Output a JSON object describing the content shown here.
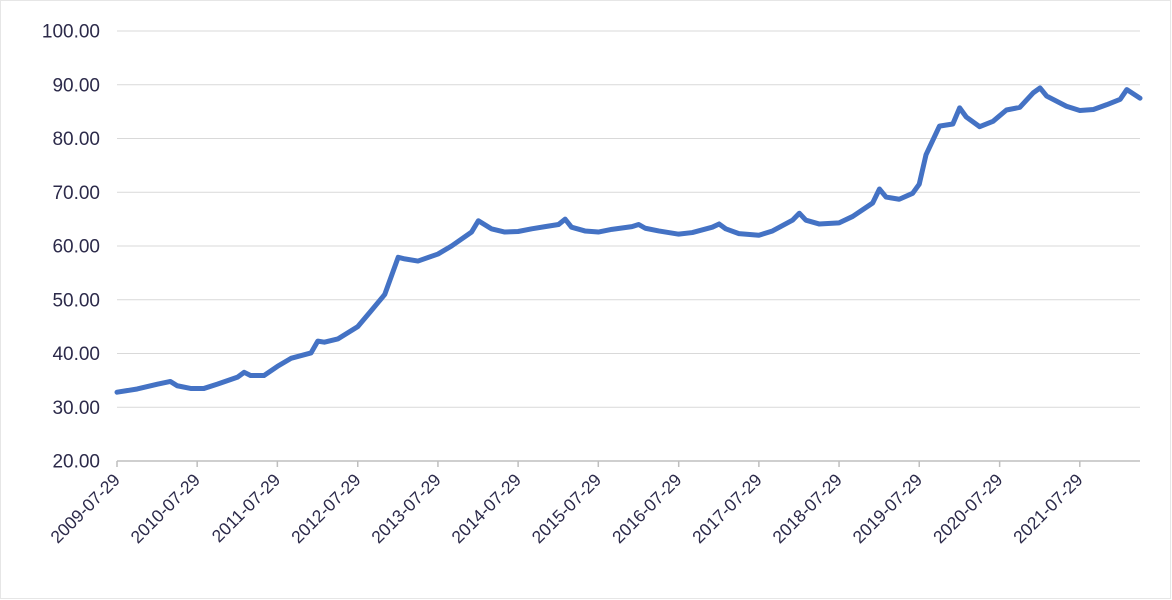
{
  "chart_data": {
    "type": "line",
    "title": "",
    "xlabel": "",
    "ylabel": "",
    "ylim": [
      20,
      100
    ],
    "y_ticks": [
      "20.00",
      "30.00",
      "40.00",
      "50.00",
      "60.00",
      "70.00",
      "80.00",
      "90.00",
      "100.00"
    ],
    "x_start": "2009-07-29",
    "x_end": "2022-04-29",
    "x_ticks": [
      "2009-07-29",
      "2010-07-29",
      "2011-07-29",
      "2012-07-29",
      "2013-07-29",
      "2014-07-29",
      "2015-07-29",
      "2016-07-29",
      "2017-07-29",
      "2018-07-29",
      "2019-07-29",
      "2020-07-29",
      "2021-07-29"
    ],
    "grid": true,
    "legend": "none",
    "line_color": "#4472c4",
    "series": [
      {
        "x": [
          "2009-07-29",
          "2009-10-29",
          "2010-01-29",
          "2010-03-29",
          "2010-04-29",
          "2010-06-29",
          "2010-08-29",
          "2010-10-29",
          "2011-01-29",
          "2011-02-28",
          "2011-03-29",
          "2011-05-29",
          "2011-07-29",
          "2011-09-29",
          "2011-12-29",
          "2012-01-29",
          "2012-02-28",
          "2012-04-29",
          "2012-07-29",
          "2012-09-29",
          "2012-11-29",
          "2013-01-29",
          "2013-02-28",
          "2013-04-29",
          "2013-07-29",
          "2013-09-29",
          "2013-12-29",
          "2014-01-29",
          "2014-03-29",
          "2014-05-29",
          "2014-07-29",
          "2014-09-29",
          "2014-11-29",
          "2015-01-29",
          "2015-02-28",
          "2015-03-29",
          "2015-05-29",
          "2015-07-29",
          "2015-09-29",
          "2015-12-29",
          "2016-01-29",
          "2016-02-28",
          "2016-04-29",
          "2016-07-29",
          "2016-09-29",
          "2016-12-29",
          "2017-01-29",
          "2017-02-28",
          "2017-04-29",
          "2017-07-29",
          "2017-09-29",
          "2017-12-29",
          "2018-01-29",
          "2018-02-28",
          "2018-04-29",
          "2018-07-29",
          "2018-09-29",
          "2018-12-29",
          "2019-01-29",
          "2019-02-28",
          "2019-04-29",
          "2019-06-29",
          "2019-07-29",
          "2019-08-29",
          "2019-10-29",
          "2019-12-29",
          "2020-01-29",
          "2020-02-28",
          "2020-04-29",
          "2020-06-29",
          "2020-08-29",
          "2020-10-29",
          "2020-12-29",
          "2021-01-29",
          "2021-02-28",
          "2021-05-29",
          "2021-07-29",
          "2021-09-29",
          "2021-11-29",
          "2022-01-29",
          "2022-02-28",
          "2022-04-29"
        ],
        "y": [
          32.8,
          33.4,
          34.3,
          34.8,
          34.0,
          33.5,
          33.5,
          34.3,
          35.6,
          36.5,
          35.9,
          35.9,
          37.6,
          39.1,
          40.1,
          42.3,
          42.1,
          42.7,
          45.0,
          48.0,
          51.0,
          57.9,
          57.6,
          57.2,
          58.5,
          60.0,
          62.6,
          64.7,
          63.2,
          62.6,
          62.7,
          63.2,
          63.6,
          64.0,
          65.0,
          63.5,
          62.8,
          62.6,
          63.1,
          63.6,
          64.0,
          63.3,
          62.8,
          62.2,
          62.5,
          63.5,
          64.1,
          63.2,
          62.3,
          62.0,
          62.8,
          64.8,
          66.1,
          64.8,
          64.1,
          64.3,
          65.5,
          68.0,
          70.6,
          69.1,
          68.7,
          69.8,
          71.5,
          77.0,
          82.3,
          82.7,
          85.7,
          84.0,
          82.2,
          83.2,
          85.3,
          85.8,
          88.5,
          89.4,
          87.9,
          86.0,
          85.2,
          85.4,
          86.3,
          87.3,
          89.1,
          87.5
        ]
      }
    ]
  }
}
